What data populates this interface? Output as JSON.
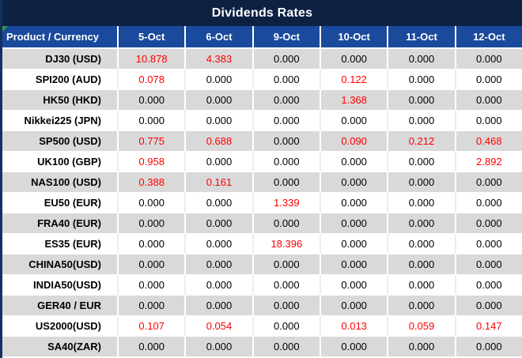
{
  "title": "Dividends Rates",
  "colors": {
    "title_bar": "#0d2143",
    "header_blue": "#1a4a9c",
    "row_gray": "#d9d9d9",
    "row_white": "#ffffff",
    "value_black": "#000000",
    "value_red": "#ff0000",
    "flag_green": "#2f9e44",
    "left_border": "#13315e"
  },
  "table": {
    "columns": [
      "Product / Currency",
      "5-Oct",
      "6-Oct",
      "9-Oct",
      "10-Oct",
      "11-Oct",
      "12-Oct"
    ],
    "rows": [
      {
        "product": "DJ30 (USD)",
        "values": [
          "10.878",
          "4.383",
          "0.000",
          "0.000",
          "0.000",
          "0.000"
        ]
      },
      {
        "product": "SPI200 (AUD)",
        "values": [
          "0.078",
          "0.000",
          "0.000",
          "0.122",
          "0.000",
          "0.000"
        ]
      },
      {
        "product": "HK50 (HKD)",
        "values": [
          "0.000",
          "0.000",
          "0.000",
          "1.368",
          "0.000",
          "0.000"
        ]
      },
      {
        "product": "Nikkei225 (JPN)",
        "values": [
          "0.000",
          "0.000",
          "0.000",
          "0.000",
          "0.000",
          "0.000"
        ]
      },
      {
        "product": "SP500 (USD)",
        "values": [
          "0.775",
          "0.688",
          "0.000",
          "0.090",
          "0.212",
          "0.468"
        ]
      },
      {
        "product": "UK100 (GBP)",
        "values": [
          "0.958",
          "0.000",
          "0.000",
          "0.000",
          "0.000",
          "2.892"
        ]
      },
      {
        "product": "NAS100 (USD)",
        "values": [
          "0.388",
          "0.161",
          "0.000",
          "0.000",
          "0.000",
          "0.000"
        ]
      },
      {
        "product": "EU50 (EUR)",
        "values": [
          "0.000",
          "0.000",
          "1.339",
          "0.000",
          "0.000",
          "0.000"
        ]
      },
      {
        "product": "FRA40 (EUR)",
        "values": [
          "0.000",
          "0.000",
          "0.000",
          "0.000",
          "0.000",
          "0.000"
        ]
      },
      {
        "product": "ES35 (EUR)",
        "values": [
          "0.000",
          "0.000",
          "18.396",
          "0.000",
          "0.000",
          "0.000"
        ]
      },
      {
        "product": "CHINA50(USD)",
        "values": [
          "0.000",
          "0.000",
          "0.000",
          "0.000",
          "0.000",
          "0.000"
        ]
      },
      {
        "product": "INDIA50(USD)",
        "values": [
          "0.000",
          "0.000",
          "0.000",
          "0.000",
          "0.000",
          "0.000"
        ]
      },
      {
        "product": "GER40 / EUR",
        "values": [
          "0.000",
          "0.000",
          "0.000",
          "0.000",
          "0.000",
          "0.000"
        ]
      },
      {
        "product": "US2000(USD)",
        "values": [
          "0.107",
          "0.054",
          "0.000",
          "0.013",
          "0.059",
          "0.147"
        ]
      },
      {
        "product": "SA40(ZAR)",
        "values": [
          "0.000",
          "0.000",
          "0.000",
          "0.000",
          "0.000",
          "0.000"
        ]
      }
    ]
  }
}
